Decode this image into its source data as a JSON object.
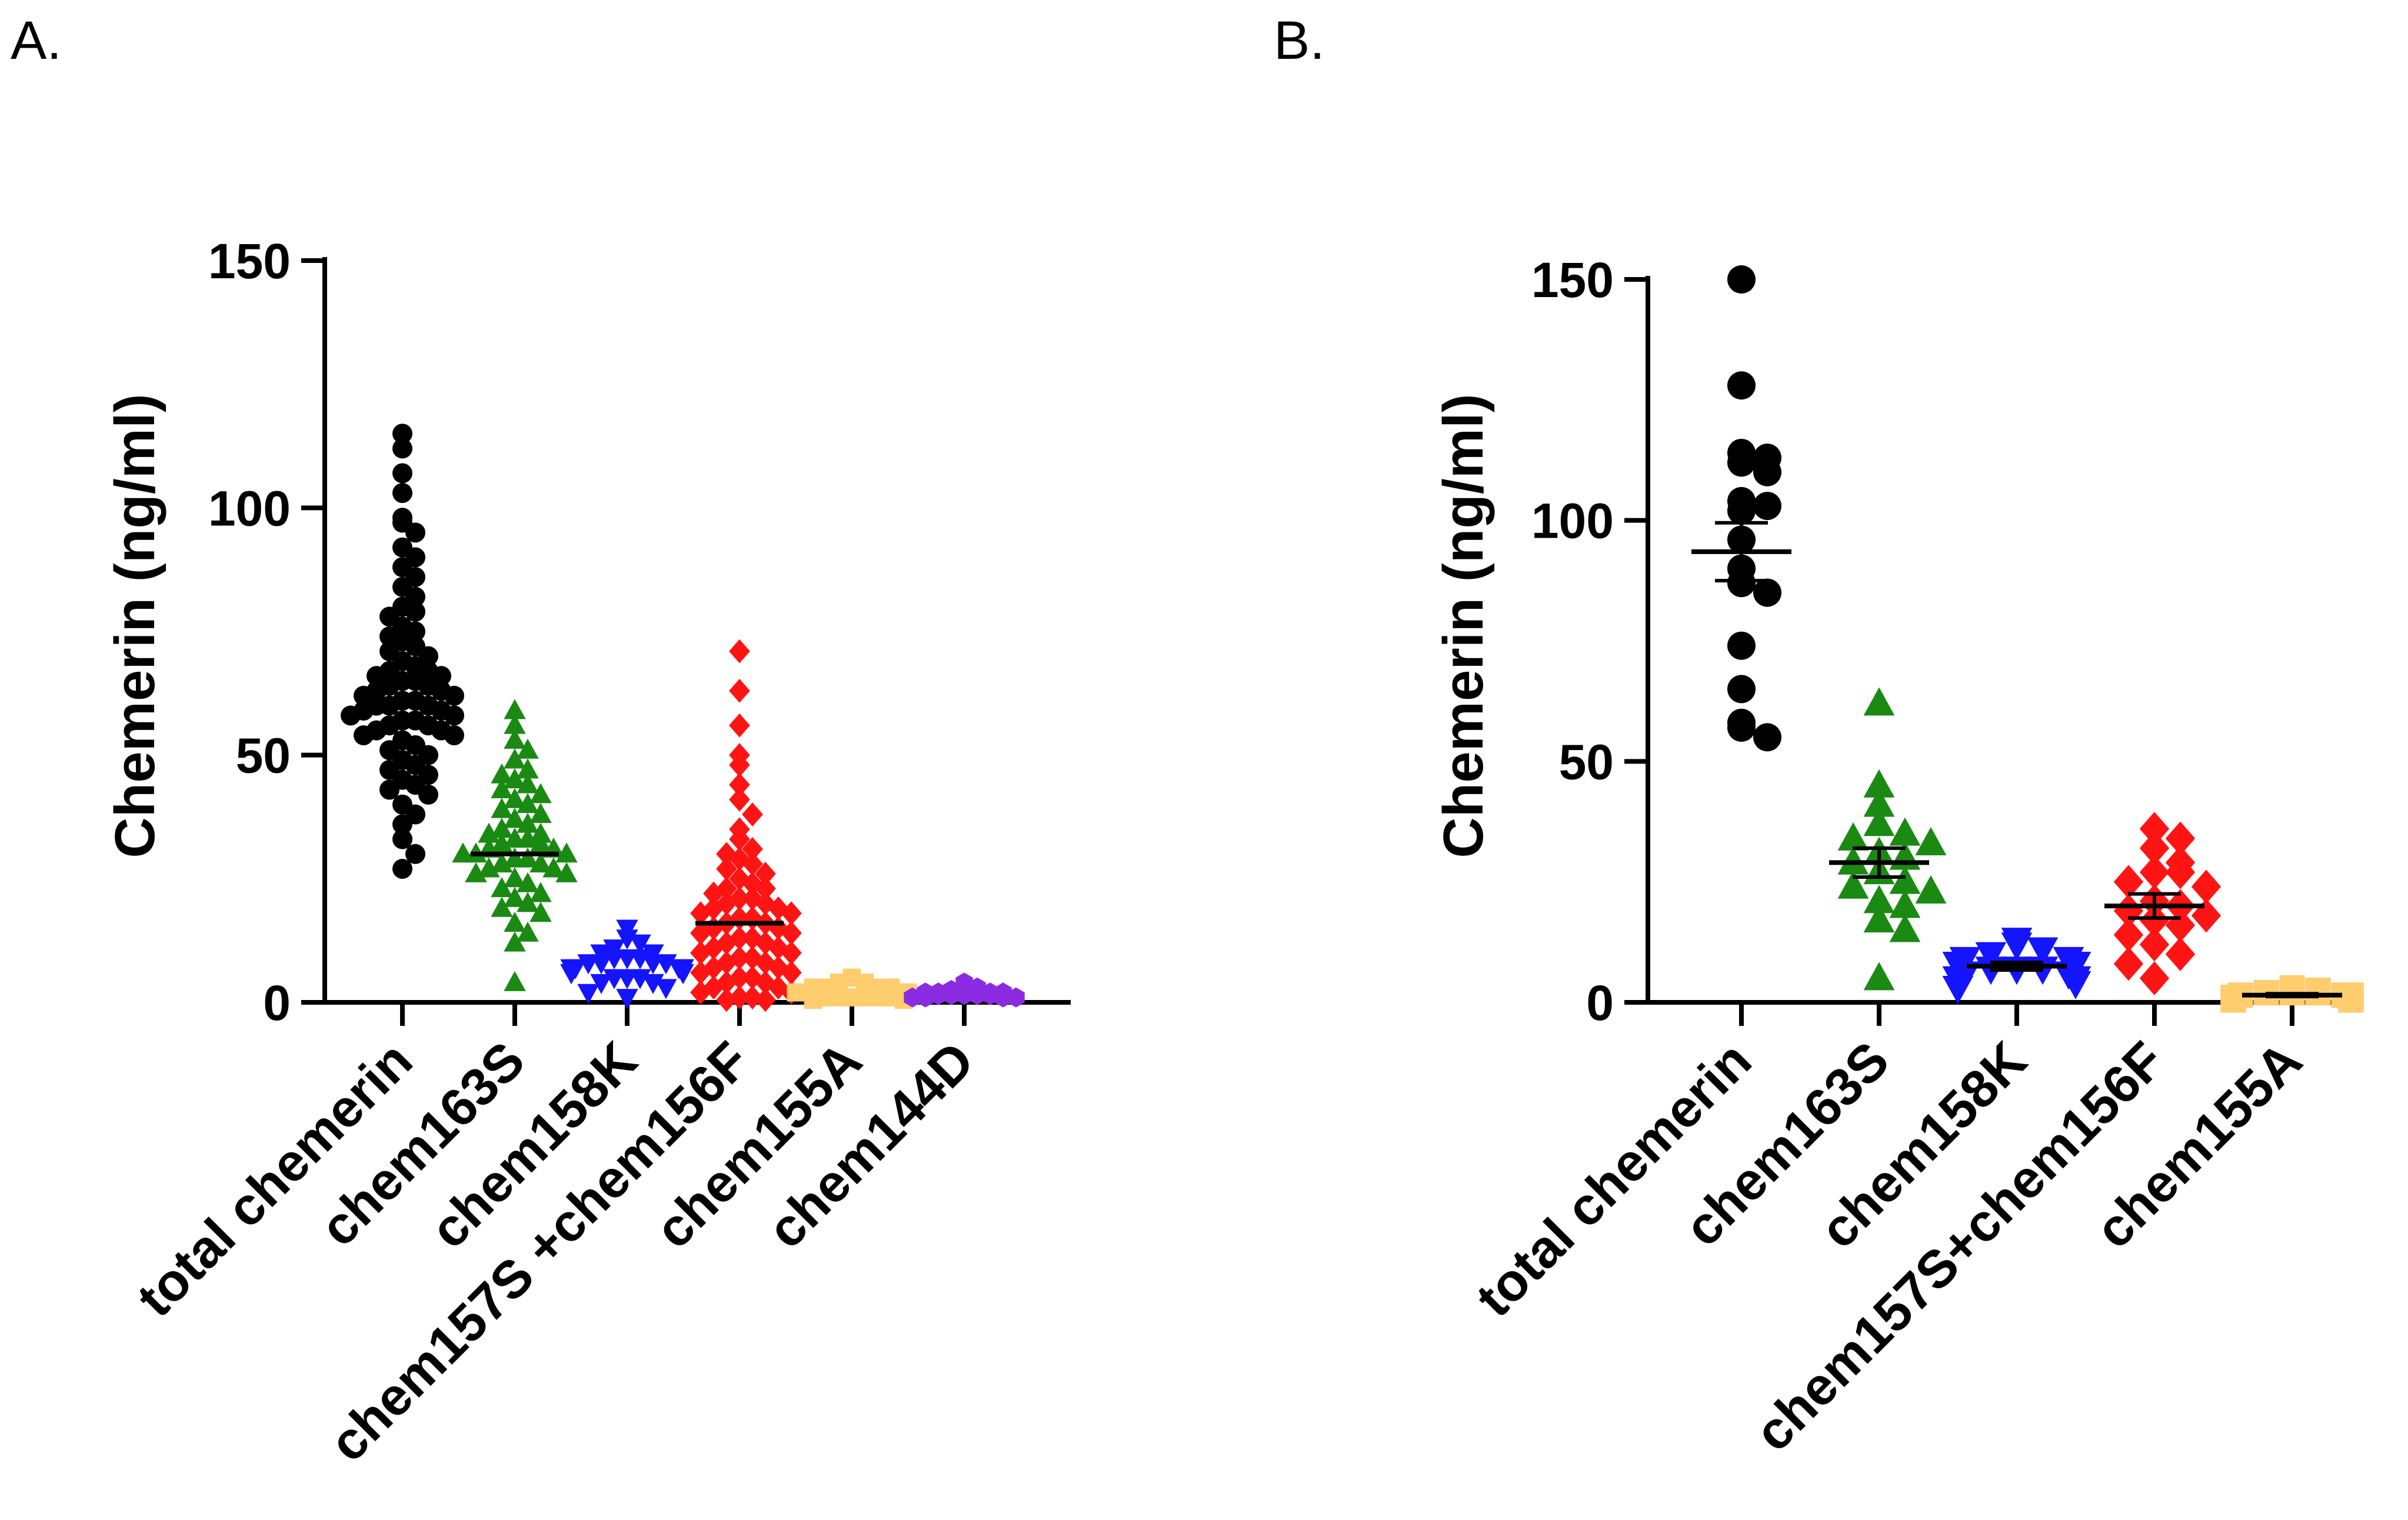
{
  "chart_data": [
    {
      "panel": "A.",
      "type": "scatter",
      "subtype": "column scatter with mean bar",
      "ylabel": "Chemerin (ng/ml)",
      "ylim": [
        0,
        150
      ],
      "yticks": [
        0,
        50,
        100,
        150
      ],
      "categories": [
        "total chemerin",
        "chem163S",
        "chem158K",
        "chem157S +chem156F",
        "chem155A",
        "chem144D"
      ],
      "markers": [
        "circle",
        "triangle-up",
        "triangle-down",
        "diamond",
        "square",
        "hexagon"
      ],
      "colors": [
        "#000000",
        "#1a8a12",
        "#1414ff",
        "#ff1414",
        "#ffcc6e",
        "#8a2be2"
      ],
      "mean_bars": [
        60,
        30,
        null,
        16,
        null,
        null
      ],
      "series": [
        {
          "name": "total chemerin",
          "values": [
            115,
            112,
            107,
            103,
            98,
            97,
            95,
            92,
            90,
            88,
            86,
            84,
            82,
            80,
            79,
            78,
            76,
            75,
            74,
            73,
            72,
            71,
            70,
            69,
            68,
            67,
            67,
            66,
            66,
            65,
            65,
            64,
            64,
            63,
            63,
            62,
            62,
            61,
            61,
            60,
            60,
            60,
            59,
            59,
            58,
            58,
            57,
            57,
            56,
            56,
            55,
            55,
            54,
            54,
            53,
            52,
            51,
            50,
            49,
            48,
            47,
            46,
            45,
            44,
            43,
            42,
            40,
            38,
            36,
            33,
            30,
            27
          ]
        },
        {
          "name": "chem163S",
          "values": [
            59,
            56,
            53,
            51,
            49,
            47,
            46,
            45,
            44,
            43,
            42,
            41,
            40,
            39,
            38,
            37,
            36,
            35,
            34,
            34,
            33,
            33,
            32,
            32,
            31,
            31,
            30,
            30,
            30,
            29,
            29,
            28,
            28,
            27,
            27,
            26,
            26,
            25,
            24,
            23,
            22,
            21,
            20,
            19,
            18,
            16,
            14,
            12,
            4
          ]
        },
        {
          "name": "chem158K",
          "values": [
            15,
            13,
            12,
            11,
            10,
            10,
            9,
            9,
            9,
            8,
            8,
            8,
            8,
            7,
            7,
            7,
            7,
            7,
            6,
            6,
            6,
            6,
            5,
            5,
            5,
            4,
            4,
            3,
            2,
            1
          ]
        },
        {
          "name": "chem157S +chem156F",
          "values": [
            71,
            63,
            56,
            50,
            48,
            44,
            41,
            38,
            35,
            33,
            31,
            30,
            29,
            28,
            27,
            26,
            25,
            24,
            23,
            23,
            22,
            21,
            21,
            20,
            20,
            19,
            19,
            18,
            18,
            17,
            17,
            16,
            16,
            15,
            15,
            14,
            14,
            13,
            13,
            12,
            12,
            11,
            11,
            10,
            10,
            9,
            9,
            8,
            8,
            7,
            7,
            6,
            6,
            5,
            5,
            4,
            4,
            3,
            3,
            2,
            2,
            1,
            1,
            0.5,
            0.5
          ]
        },
        {
          "name": "chem155A",
          "values": [
            5,
            4,
            4,
            3,
            3,
            3,
            3,
            2,
            2,
            2,
            2,
            2,
            2,
            2,
            1,
            1,
            1,
            1,
            1,
            1,
            0.5,
            0.5
          ]
        },
        {
          "name": "chem144D",
          "values": [
            4,
            3,
            2.5,
            2,
            2,
            2,
            2,
            1.5,
            1.5,
            1.5,
            1.5,
            1.5,
            1,
            1,
            1,
            1
          ]
        }
      ]
    },
    {
      "panel": "B.",
      "type": "scatter",
      "subtype": "column scatter with mean and SEM",
      "ylabel": "Chemerin (ng/ml)",
      "ylim": [
        0,
        150
      ],
      "yticks": [
        0,
        50,
        100,
        150
      ],
      "categories": [
        "total chemerin",
        "chem163S",
        "chem158K",
        "chem157S+chem156F",
        "chem155A"
      ],
      "markers": [
        "circle",
        "triangle-up",
        "triangle-down",
        "diamond",
        "square"
      ],
      "colors": [
        "#000000",
        "#1a8a12",
        "#1414ff",
        "#ff1414",
        "#ffcc6e"
      ],
      "mean": [
        93.5,
        29,
        7.5,
        20,
        1.5
      ],
      "sem": [
        6,
        3,
        0.8,
        2.5,
        0.3
      ],
      "series": [
        {
          "name": "total chemerin",
          "values": [
            150,
            128,
            114,
            113,
            112,
            110,
            104,
            103,
            102,
            96,
            90,
            87,
            85,
            74,
            65,
            58,
            57,
            55
          ]
        },
        {
          "name": "chem163S",
          "values": [
            62,
            45,
            41,
            37,
            35,
            34,
            33,
            31,
            30,
            29,
            27,
            25,
            24,
            23,
            21,
            20,
            17,
            15,
            5
          ]
        },
        {
          "name": "chem158K",
          "values": [
            13,
            12,
            11,
            10,
            9,
            9,
            8,
            8,
            8,
            7,
            7,
            7,
            6,
            6,
            5,
            5,
            4,
            3
          ]
        },
        {
          "name": "chem157S+chem156F",
          "values": [
            36,
            34,
            32,
            29,
            27,
            27,
            25,
            24,
            21,
            20,
            19,
            18,
            17,
            16,
            14,
            12,
            10,
            8,
            5
          ]
        },
        {
          "name": "chem155A",
          "values": [
            3,
            2.5,
            2,
            2,
            2,
            1.5,
            1.5,
            1.5,
            1,
            1,
            1,
            1,
            1,
            0.5,
            0.5,
            0.5,
            0.5
          ]
        }
      ]
    }
  ]
}
